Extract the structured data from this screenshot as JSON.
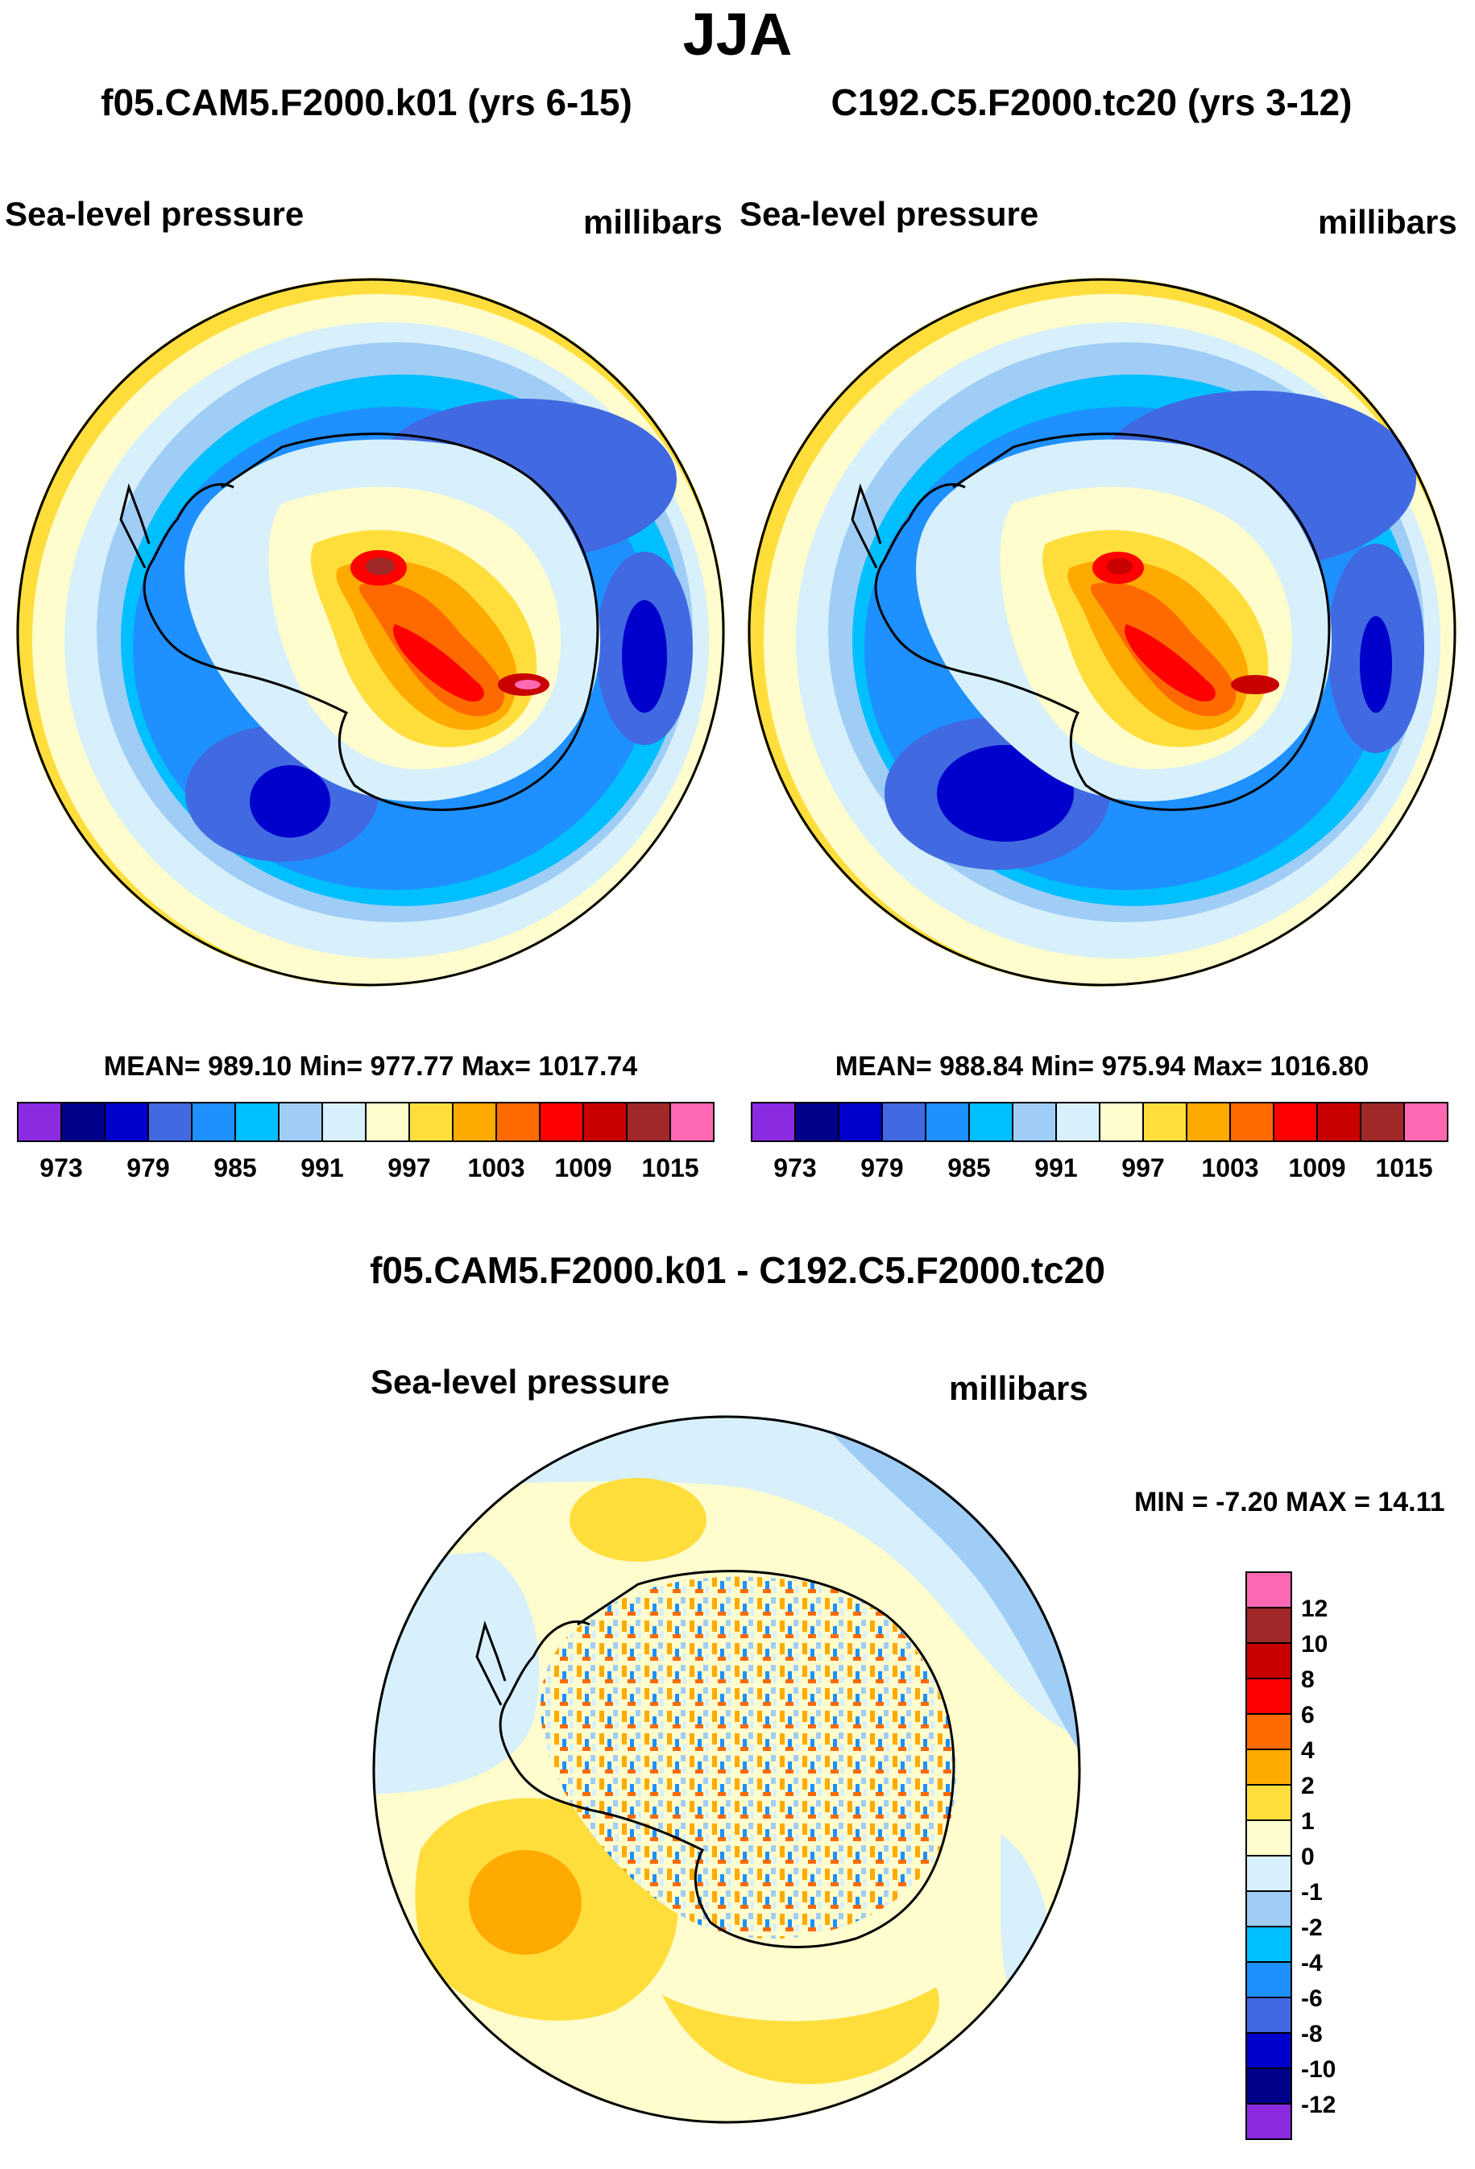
{
  "title": "JJA",
  "colors": {
    "c973": "#8a2be2",
    "c976": "#00008b",
    "c979": "#0000cd",
    "c982": "#4169e1",
    "c985": "#1e90ff",
    "c988": "#00bfff",
    "c991": "#a0cdf5",
    "c994": "#d7f0fb",
    "c997": "#fffccd",
    "c1000": "#ffde3c",
    "c1003": "#ffaa00",
    "c1006": "#ff6a00",
    "c1009": "#ff0000",
    "c1012": "#c80000",
    "c1015": "#a02828",
    "c1018": "#ff69b4"
  },
  "panels": [
    {
      "case_title": "f05.CAM5.F2000.k01 (yrs 6-15)",
      "left_label": "Sea-level pressure",
      "right_label": "millibars",
      "stats_line": "MEAN= 989.10  Min= 977.77  Max= 1017.74"
    },
    {
      "case_title": "C192.C5.F2000.tc20 (yrs 3-12)",
      "left_label": "Sea-level pressure",
      "right_label": "millibars",
      "stats_line": "MEAN= 988.84  Min= 975.94  Max= 1016.80"
    }
  ],
  "diff_panel": {
    "title": "f05.CAM5.F2000.k01 - C192.C5.F2000.tc20",
    "left_label": "Sea-level pressure",
    "right_label": "millibars",
    "minmax_line": "MIN =  -7.20 MAX =  14.11"
  },
  "chart_data": [
    {
      "type": "heatmap",
      "projection": "south-polar-stereographic",
      "title": "f05.CAM5.F2000.k01 (yrs 6-15)",
      "variable": "Sea-level pressure",
      "units": "millibars",
      "mean": 989.1,
      "min": 977.77,
      "max": 1017.74,
      "colorbar_ticks": [
        "973",
        "979",
        "985",
        "991",
        "997",
        "1003",
        "1009",
        "1015"
      ],
      "colorbar_colors": [
        "#8a2be2",
        "#00008b",
        "#0000cd",
        "#4169e1",
        "#1e90ff",
        "#00bfff",
        "#a0cdf5",
        "#d7f0fb",
        "#fffccd",
        "#ffde3c",
        "#ffaa00",
        "#ff6a00",
        "#ff0000",
        "#c80000",
        "#a02828",
        "#ff69b4"
      ]
    },
    {
      "type": "heatmap",
      "projection": "south-polar-stereographic",
      "title": "C192.C5.F2000.tc20 (yrs 3-12)",
      "variable": "Sea-level pressure",
      "units": "millibars",
      "mean": 988.84,
      "min": 975.94,
      "max": 1016.8,
      "colorbar_ticks": [
        "973",
        "979",
        "985",
        "991",
        "997",
        "1003",
        "1009",
        "1015"
      ],
      "colorbar_colors": [
        "#8a2be2",
        "#00008b",
        "#0000cd",
        "#4169e1",
        "#1e90ff",
        "#00bfff",
        "#a0cdf5",
        "#d7f0fb",
        "#fffccd",
        "#ffde3c",
        "#ffaa00",
        "#ff6a00",
        "#ff0000",
        "#c80000",
        "#a02828",
        "#ff69b4"
      ]
    },
    {
      "type": "heatmap",
      "projection": "south-polar-stereographic",
      "title": "f05.CAM5.F2000.k01 - C192.C5.F2000.tc20",
      "variable": "Sea-level pressure",
      "units": "millibars",
      "min": -7.2,
      "max": 14.11,
      "colorbar_ticks": [
        "12",
        "10",
        "8",
        "6",
        "4",
        "2",
        "1",
        "0",
        "-1",
        "-2",
        "-4",
        "-6",
        "-8",
        "-10",
        "-12"
      ],
      "colorbar_colors": [
        "#ff69b4",
        "#a02828",
        "#c80000",
        "#ff0000",
        "#ff6a00",
        "#ffaa00",
        "#ffde3c",
        "#fffccd",
        "#d7f0fb",
        "#a0cdf5",
        "#00bfff",
        "#1e90ff",
        "#4169e1",
        "#0000cd",
        "#00008b",
        "#8a2be2"
      ]
    }
  ]
}
